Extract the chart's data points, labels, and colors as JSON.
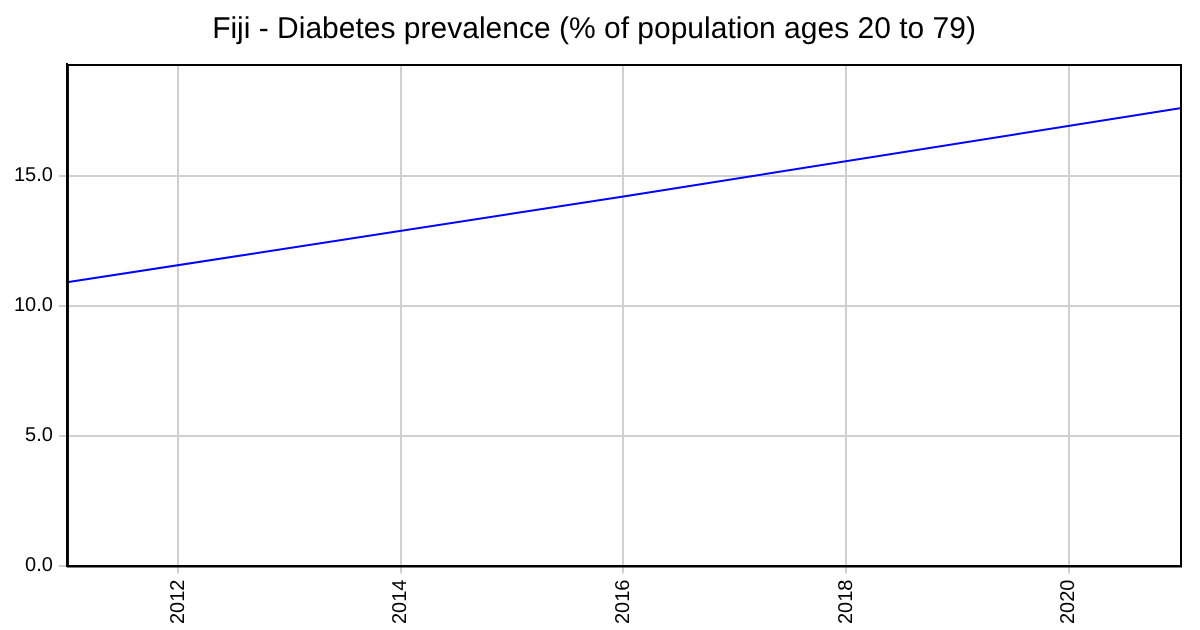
{
  "chart_data": {
    "type": "line",
    "title": "Fiji - Diabetes prevalence (% of population ages 20 to 79)",
    "x": [
      2011,
      2016,
      2021
    ],
    "series": [
      {
        "color": "#0000ff",
        "values": [
          10.9,
          14.2,
          17.6
        ]
      }
    ],
    "xlim": [
      2011,
      2021
    ],
    "xticks": [
      2012,
      2014,
      2016,
      2018,
      2020
    ],
    "ylim": [
      0,
      19.3
    ],
    "yticks": [
      {
        "value": 0,
        "label": "0.0"
      },
      {
        "value": 5,
        "label": "5.0"
      },
      {
        "value": 10,
        "label": "10.0"
      },
      {
        "value": 15,
        "label": "15.0"
      }
    ],
    "grid": true,
    "legend": false,
    "marker": "none",
    "line_style": "solid"
  }
}
